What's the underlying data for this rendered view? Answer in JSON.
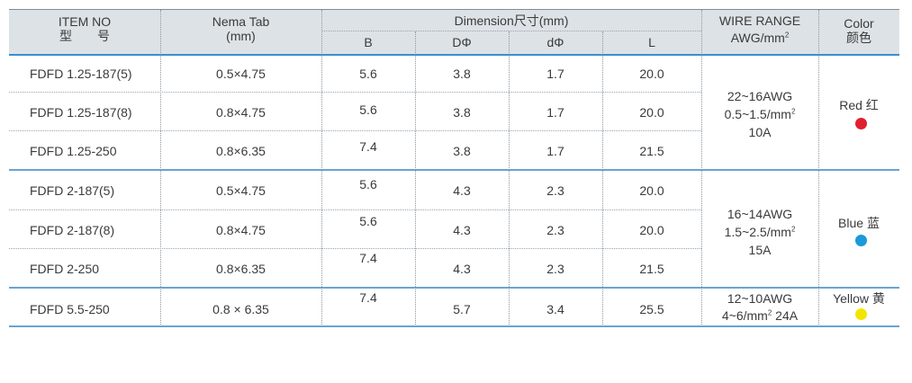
{
  "header": {
    "item_no_line1": "ITEM NO",
    "item_no_line2": "型　　号",
    "nema_line1": "Nema Tab",
    "nema_line2": "(mm)",
    "dimension": "Dimension尺寸(mm)",
    "col_b": "B",
    "col_D": "DΦ",
    "col_d": "dΦ",
    "col_L": "L",
    "wire_line1": "WIRE RANGE",
    "wire_line2": "AWG/mm",
    "wire_sup": "2",
    "color_line1": "Color",
    "color_line2": "颜色"
  },
  "rows": [
    {
      "item": "FDFD 1.25-187(5)",
      "nema": "0.5×4.75",
      "b": "5.6",
      "D": "3.8",
      "d": "1.7",
      "L": "20.0"
    },
    {
      "item": "FDFD 1.25-187(8)",
      "nema": "0.8×4.75",
      "b": "5.6",
      "D": "3.8",
      "d": "1.7",
      "L": "20.0"
    },
    {
      "item": "FDFD 1.25-250",
      "nema": "0.8×6.35",
      "b": "7.4",
      "D": "3.8",
      "d": "1.7",
      "L": "21.5"
    },
    {
      "item": "FDFD 2-187(5)",
      "nema": "0.5×4.75",
      "b": "5.6",
      "D": "4.3",
      "d": "2.3",
      "L": "20.0"
    },
    {
      "item": "FDFD 2-187(8)",
      "nema": "0.8×4.75",
      "b": "5.6",
      "D": "4.3",
      "d": "2.3",
      "L": "20.0"
    },
    {
      "item": "FDFD 2-250",
      "nema": "0.8×6.35",
      "b": "7.4",
      "D": "4.3",
      "d": "2.3",
      "L": "21.5"
    },
    {
      "item": "FDFD 5.5-250",
      "nema": "0.8 × 6.35",
      "b": "7.4",
      "D": "5.7",
      "d": "3.4",
      "L": "25.5"
    }
  ],
  "groups": [
    {
      "wire1": "22~16AWG",
      "wire2": "0.5~1.5/mm",
      "wire2_sup": "2",
      "wire3": "10A",
      "color_label": "Red 红",
      "color_hex": "#e0202e"
    },
    {
      "wire1": "16~14AWG",
      "wire2": "1.5~2.5/mm",
      "wire2_sup": "2",
      "wire3": "15A",
      "color_label": "Blue 蓝",
      "color_hex": "#1a9ad8"
    },
    {
      "wire1": "12~10AWG",
      "wire2": "4~6/mm",
      "wire2_sup": "2",
      "wire3": " 24A",
      "color_label": "Yellow 黄",
      "color_hex": "#f2e600"
    }
  ]
}
